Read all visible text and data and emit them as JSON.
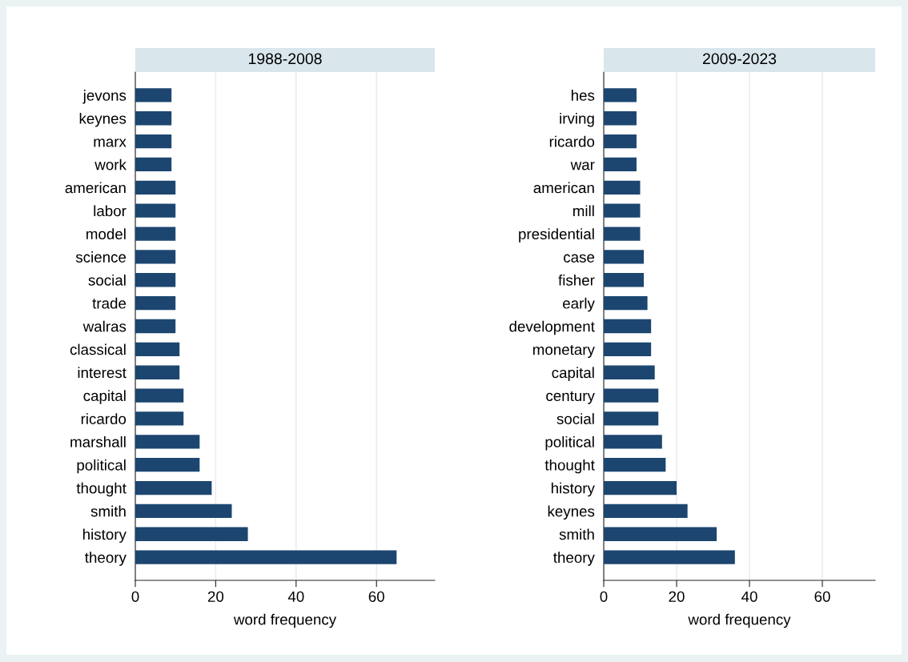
{
  "chart_data": [
    {
      "type": "bar",
      "orientation": "horizontal",
      "title": "1988-2008",
      "xlabel": "word frequency",
      "color": "#1c4670",
      "grid": "x",
      "xlim": [
        0,
        74.5
      ],
      "xticks": [
        0,
        20,
        40,
        60
      ],
      "categories": [
        "jevons",
        "keynes",
        "marx",
        "work",
        "american",
        "labor",
        "model",
        "science",
        "social",
        "trade",
        "walras",
        "classical",
        "interest",
        "capital",
        "ricardo",
        "marshall",
        "political",
        "thought",
        "smith",
        "history",
        "theory"
      ],
      "values": [
        9,
        9,
        9,
        9,
        10,
        10,
        10,
        10,
        10,
        10,
        10,
        11,
        11,
        12,
        12,
        16,
        16,
        19,
        24,
        28,
        65
      ]
    },
    {
      "type": "bar",
      "orientation": "horizontal",
      "title": "2009-2023",
      "xlabel": "word frequency",
      "color": "#1c4670",
      "grid": "x",
      "xlim": [
        0,
        74.5
      ],
      "xticks": [
        0,
        20,
        40,
        60
      ],
      "categories": [
        "hes",
        "irving",
        "ricardo",
        "war",
        "american",
        "mill",
        "presidential",
        "case",
        "fisher",
        "early",
        "development",
        "monetary",
        "capital",
        "century",
        "social",
        "political",
        "thought",
        "history",
        "keynes",
        "smith",
        "theory"
      ],
      "values": [
        9,
        9,
        9,
        9,
        10,
        10,
        10,
        11,
        11,
        12,
        13,
        13,
        14,
        15,
        15,
        16,
        17,
        20,
        23,
        31,
        36
      ]
    }
  ]
}
